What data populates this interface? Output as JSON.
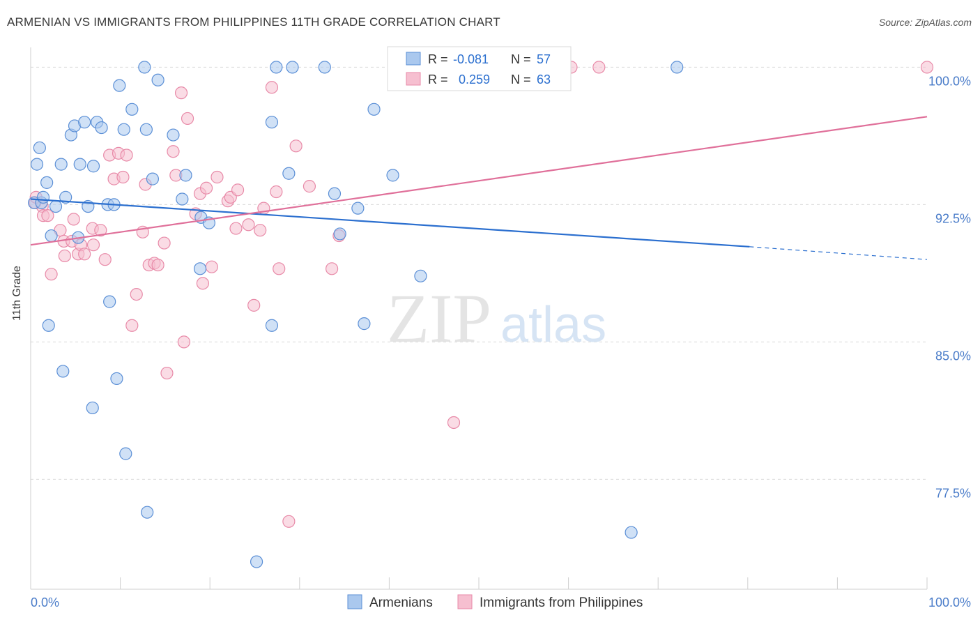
{
  "title": "ARMENIAN VS IMMIGRANTS FROM PHILIPPINES 11TH GRADE CORRELATION CHART",
  "source": "Source: ZipAtlas.com",
  "watermark": {
    "zip": "ZIP",
    "atlas": "atlas"
  },
  "colors": {
    "armenians_fill": "#aac8ee",
    "armenians_stroke": "#5b8fd6",
    "armenians_line": "#2b6fcf",
    "phil_fill": "#f6bfd0",
    "phil_stroke": "#e88aa8",
    "phil_line": "#e0709a",
    "tick_label": "#4a7cc9",
    "grid": "#d9d9d9"
  },
  "legend_top": {
    "rows": [
      {
        "r_label": "R =",
        "r_value": "-0.081",
        "n_label": "N =",
        "n_value": "57"
      },
      {
        "r_label": "R =",
        "r_value": "0.259",
        "n_label": "N =",
        "n_value": "63"
      }
    ]
  },
  "chart_data": {
    "type": "scatter",
    "title": "ARMENIAN VS IMMIGRANTS FROM PHILIPPINES 11TH GRADE CORRELATION CHART",
    "xlabel": "",
    "ylabel": "11th Grade",
    "xlim": [
      0,
      100
    ],
    "ylim": [
      71.5,
      100.7
    ],
    "x_tick_labels": [
      "0.0%",
      "100.0%"
    ],
    "y_ticks": [
      77.5,
      85.0,
      92.5,
      100.0
    ],
    "y_tick_labels": [
      "77.5%",
      "85.0%",
      "92.5%",
      "100.0%"
    ],
    "grid": true,
    "legend_position": "bottom-center",
    "series": [
      {
        "name": "Armenians",
        "points": [
          [
            0.4,
            92.6
          ],
          [
            0.7,
            94.7
          ],
          [
            1.0,
            95.6
          ],
          [
            1.2,
            92.6
          ],
          [
            1.4,
            92.9
          ],
          [
            1.8,
            93.7
          ],
          [
            2.0,
            85.9
          ],
          [
            2.3,
            90.8
          ],
          [
            2.8,
            92.4
          ],
          [
            3.4,
            94.7
          ],
          [
            3.6,
            83.4
          ],
          [
            3.9,
            92.9
          ],
          [
            4.5,
            96.3
          ],
          [
            4.9,
            96.8
          ],
          [
            5.3,
            90.7
          ],
          [
            5.5,
            94.7
          ],
          [
            6.0,
            97.0
          ],
          [
            6.4,
            92.4
          ],
          [
            6.9,
            81.4
          ],
          [
            7.0,
            94.6
          ],
          [
            7.4,
            97.0
          ],
          [
            7.9,
            96.7
          ],
          [
            8.6,
            92.5
          ],
          [
            8.8,
            87.2
          ],
          [
            9.3,
            92.5
          ],
          [
            9.6,
            83.0
          ],
          [
            9.9,
            99.0
          ],
          [
            10.4,
            96.6
          ],
          [
            10.6,
            78.9
          ],
          [
            11.3,
            97.7
          ],
          [
            12.7,
            100.0
          ],
          [
            12.9,
            96.6
          ],
          [
            13.0,
            75.7
          ],
          [
            13.6,
            93.9
          ],
          [
            14.2,
            99.3
          ],
          [
            15.9,
            96.3
          ],
          [
            16.9,
            92.8
          ],
          [
            17.3,
            94.1
          ],
          [
            18.9,
            89.0
          ],
          [
            19.0,
            91.8
          ],
          [
            19.9,
            91.5
          ],
          [
            25.2,
            73.0
          ],
          [
            26.9,
            97.0
          ],
          [
            26.9,
            85.9
          ],
          [
            27.4,
            100.0
          ],
          [
            28.8,
            94.2
          ],
          [
            29.2,
            100.0
          ],
          [
            32.8,
            100.0
          ],
          [
            33.9,
            93.1
          ],
          [
            34.5,
            90.9
          ],
          [
            36.5,
            92.3
          ],
          [
            37.2,
            86.0
          ],
          [
            38.3,
            97.7
          ],
          [
            40.4,
            94.1
          ],
          [
            43.5,
            88.6
          ],
          [
            67.0,
            74.6
          ],
          [
            72.1,
            100.0
          ]
        ],
        "trend": {
          "x": [
            0,
            80.2
          ],
          "y": [
            92.8,
            90.2
          ],
          "dashed_to": [
            100,
            89.5
          ]
        }
      },
      {
        "name": "Immigrants from Philippines",
        "points": [
          [
            0.5,
            92.6
          ],
          [
            0.6,
            92.9
          ],
          [
            1.3,
            92.4
          ],
          [
            1.4,
            91.9
          ],
          [
            1.9,
            91.9
          ],
          [
            2.3,
            88.7
          ],
          [
            3.3,
            91.1
          ],
          [
            3.7,
            90.5
          ],
          [
            3.8,
            89.7
          ],
          [
            4.6,
            90.5
          ],
          [
            4.8,
            91.7
          ],
          [
            5.3,
            89.8
          ],
          [
            5.6,
            90.3
          ],
          [
            6.0,
            89.8
          ],
          [
            6.9,
            91.2
          ],
          [
            7.0,
            90.3
          ],
          [
            7.8,
            91.1
          ],
          [
            8.3,
            89.5
          ],
          [
            8.8,
            95.2
          ],
          [
            9.3,
            93.9
          ],
          [
            9.8,
            95.3
          ],
          [
            10.3,
            94.0
          ],
          [
            10.7,
            95.2
          ],
          [
            11.3,
            85.9
          ],
          [
            11.8,
            87.6
          ],
          [
            12.5,
            91.0
          ],
          [
            12.8,
            93.6
          ],
          [
            13.2,
            89.2
          ],
          [
            13.8,
            89.3
          ],
          [
            14.2,
            89.2
          ],
          [
            14.9,
            90.4
          ],
          [
            15.2,
            83.3
          ],
          [
            15.9,
            95.4
          ],
          [
            16.2,
            94.1
          ],
          [
            16.8,
            98.6
          ],
          [
            17.1,
            85.0
          ],
          [
            17.5,
            97.2
          ],
          [
            18.4,
            92.0
          ],
          [
            18.9,
            93.1
          ],
          [
            19.2,
            88.2
          ],
          [
            19.6,
            93.4
          ],
          [
            20.2,
            89.1
          ],
          [
            20.8,
            94.0
          ],
          [
            22.0,
            92.7
          ],
          [
            22.3,
            92.9
          ],
          [
            22.9,
            91.2
          ],
          [
            23.1,
            93.3
          ],
          [
            24.3,
            91.4
          ],
          [
            24.9,
            87.0
          ],
          [
            25.6,
            91.1
          ],
          [
            26.0,
            92.3
          ],
          [
            26.9,
            98.9
          ],
          [
            27.4,
            93.2
          ],
          [
            27.7,
            89.0
          ],
          [
            28.8,
            75.2
          ],
          [
            29.6,
            95.7
          ],
          [
            31.1,
            93.5
          ],
          [
            33.6,
            89.0
          ],
          [
            34.4,
            90.8
          ],
          [
            47.2,
            80.6
          ],
          [
            60.3,
            100.0
          ],
          [
            63.4,
            100.0
          ],
          [
            100.0,
            100.0
          ]
        ],
        "trend": {
          "x": [
            0,
            100
          ],
          "y": [
            90.3,
            97.3
          ]
        }
      }
    ]
  }
}
